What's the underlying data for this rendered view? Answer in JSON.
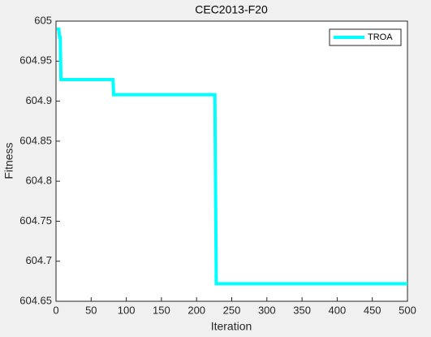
{
  "chart_data": {
    "type": "line",
    "title": "CEC2013-F20",
    "x_label": "Iteration",
    "y_label": "Fitness",
    "x": [
      1,
      4,
      5,
      6,
      7,
      81,
      82,
      226,
      228,
      500
    ],
    "series": [
      {
        "name": "TROA",
        "color": "#00ffff",
        "values": [
          604.99,
          604.99,
          604.98,
          604.98,
          604.927,
          604.927,
          604.908,
          604.908,
          604.672,
          604.672
        ]
      }
    ],
    "xlim": [
      0,
      500
    ],
    "xticks": [
      0,
      50,
      100,
      150,
      200,
      250,
      300,
      350,
      400,
      450,
      500
    ],
    "ylim": [
      604.65,
      605
    ],
    "yticks": [
      604.65,
      604.7,
      604.75,
      604.8,
      604.85,
      604.9,
      604.95,
      605
    ],
    "grid": false,
    "legend": "northeast"
  }
}
